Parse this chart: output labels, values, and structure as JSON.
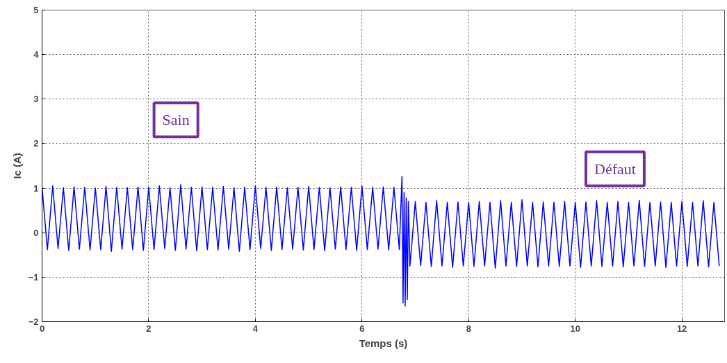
{
  "chart_data": {
    "type": "line",
    "xlabel": "Temps (s)",
    "ylabel": "Ic (A)",
    "annotations": [
      "Sain",
      "Défaut"
    ],
    "xlim": [
      0,
      12.8
    ],
    "ylim": [
      -2,
      5
    ],
    "xticks": [
      0,
      2,
      4,
      6,
      8,
      10,
      12
    ],
    "yticks": [
      -2,
      -1,
      0,
      1,
      2,
      3,
      4,
      5
    ],
    "grid": true,
    "marker": "none",
    "line_style": "solid",
    "series": [
      {
        "color": "#0000ff",
        "x": [
          0,
          0.1,
          0.2,
          0.3,
          0.4,
          0.5,
          0.6,
          0.7,
          0.8,
          0.9,
          1,
          1.1,
          1.2,
          1.3,
          1.4,
          1.5,
          1.6,
          1.7,
          1.8,
          1.9,
          2,
          2.1,
          2.2,
          2.3,
          2.4,
          2.5,
          2.6,
          2.7,
          2.8,
          2.9,
          3,
          3.1,
          3.2,
          3.3,
          3.4,
          3.5,
          3.6,
          3.7,
          3.8,
          3.9,
          4,
          4.1,
          4.2,
          4.3,
          4.4,
          4.5,
          4.6,
          4.7,
          4.8,
          4.9,
          5,
          5.1,
          5.2,
          5.3,
          5.4,
          5.5,
          5.6,
          5.7,
          5.8,
          5.9,
          6,
          6.1,
          6.2,
          6.3,
          6.4,
          6.5,
          6.6,
          6.7,
          6.75,
          6.77,
          6.79,
          6.81,
          6.83,
          6.85,
          6.87,
          6.9,
          7,
          7.1,
          7.2,
          7.3,
          7.4,
          7.5,
          7.6,
          7.7,
          7.8,
          7.9,
          8,
          8.1,
          8.2,
          8.3,
          8.4,
          8.5,
          8.6,
          8.7,
          8.8,
          8.9,
          9,
          9.1,
          9.2,
          9.3,
          9.4,
          9.5,
          9.6,
          9.7,
          9.8,
          9.9,
          10,
          10.1,
          10.2,
          10.3,
          10.4,
          10.5,
          10.6,
          10.7,
          10.8,
          10.9,
          11,
          11.1,
          11.2,
          11.3,
          11.4,
          11.5,
          11.6,
          11.7,
          11.8,
          11.9,
          12,
          12.1,
          12.2,
          12.3,
          12.4,
          12.5,
          12.6,
          12.7
        ],
        "values": [
          1.02,
          -0.38,
          1.05,
          -0.36,
          1.01,
          -0.4,
          1.03,
          -0.37,
          1.02,
          -0.39,
          1.0,
          -0.38,
          1.04,
          -0.42,
          1.02,
          -0.37,
          1.01,
          -0.38,
          1.03,
          -0.4,
          1.02,
          -0.38,
          1.05,
          -0.36,
          1.01,
          -0.4,
          1.08,
          -0.37,
          1.02,
          -0.41,
          1.03,
          -0.38,
          1.02,
          -0.39,
          1.04,
          -0.37,
          1.01,
          -0.42,
          1.02,
          -0.38,
          1.05,
          -0.36,
          1.02,
          -0.4,
          1.03,
          -0.38,
          1.01,
          -0.37,
          1.02,
          -0.39,
          1.04,
          -0.38,
          1.02,
          -0.41,
          1.01,
          -0.37,
          1.03,
          -0.38,
          1.02,
          -0.4,
          1.05,
          -0.38,
          1.02,
          -0.37,
          1.03,
          -0.39,
          1.02,
          -0.38,
          1.26,
          -1.58,
          0.9,
          -1.65,
          0.78,
          -1.5,
          0.7,
          -0.75,
          0.7,
          -0.74,
          0.68,
          -0.76,
          0.72,
          -0.75,
          0.68,
          -0.78,
          0.69,
          -0.75,
          0.68,
          -0.76,
          0.7,
          -0.75,
          0.68,
          -0.8,
          0.72,
          -0.75,
          0.68,
          -0.76,
          0.74,
          -0.75,
          0.68,
          -0.77,
          0.69,
          -0.75,
          0.68,
          -0.76,
          0.7,
          -0.75,
          0.68,
          -0.78,
          0.69,
          -0.75,
          0.72,
          -0.76,
          0.68,
          -0.75,
          0.7,
          -0.77,
          0.68,
          -0.75,
          0.73,
          -0.76,
          0.68,
          -0.75,
          0.69,
          -0.78,
          0.68,
          -0.75,
          0.7,
          -0.76,
          0.68,
          -0.75,
          0.72,
          -0.77,
          0.68,
          -0.75
        ]
      }
    ]
  }
}
